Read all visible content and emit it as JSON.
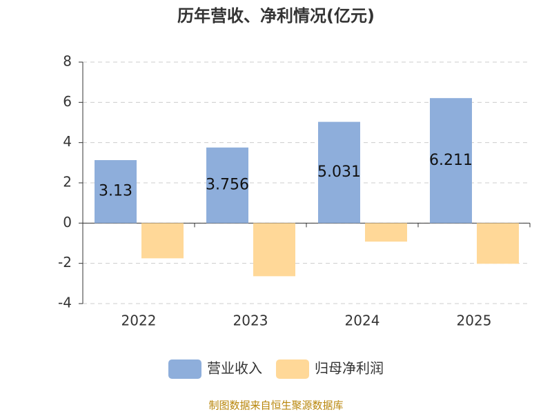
{
  "chart_data": {
    "type": "bar",
    "title": "历年营收、净利情况(亿元)",
    "categories": [
      "2022",
      "2023",
      "2024",
      "2025"
    ],
    "series": [
      {
        "name": "营业收入",
        "color": "#8eaedb",
        "values": [
          3.13,
          3.756,
          5.031,
          6.211
        ],
        "labels": true
      },
      {
        "name": "归母净利润",
        "color": "#ffd898",
        "values": [
          -1.75,
          -2.64,
          -0.92,
          -2.02
        ],
        "labels": false
      }
    ],
    "ylim": [
      -4,
      8
    ],
    "yticks": [
      -4,
      -2,
      0,
      2,
      4,
      6,
      8
    ],
    "grid": true,
    "legend": "bottom",
    "source": "制图数据来自恒生聚源数据库"
  }
}
